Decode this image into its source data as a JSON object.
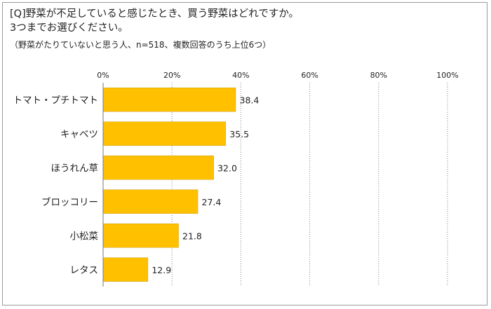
{
  "title_lines": [
    "[Q]野菜が不足していると感じたとき、買う野菜はどれですか。",
    "3つまでお選びください。"
  ],
  "subtitle": "（野菜がたりていないと思う人、n=518、複数回答のうち上位6つ）",
  "colors": {
    "bar": "#FFC000",
    "bar_edge": "#C9A227",
    "grid": "#888888",
    "axis": "#777777"
  },
  "chart_data": {
    "type": "bar",
    "orientation": "horizontal",
    "categories": [
      "トマト・プチトマト",
      "キャベツ",
      "ほうれん草",
      "ブロッコリー",
      "小松菜",
      "レタス"
    ],
    "values": [
      38.4,
      35.5,
      32.0,
      27.4,
      21.8,
      12.9
    ],
    "value_labels": [
      "38.4",
      "35.5",
      "32.0",
      "27.4",
      "21.8",
      "12.9"
    ],
    "xlim": [
      0,
      100
    ],
    "x_ticks": [
      "0%",
      "20%",
      "40%",
      "60%",
      "80%",
      "100%"
    ],
    "grid": true,
    "title": "[Q]野菜が不足していると感じたとき、買う野菜はどれですか。3つまでお選びください。",
    "xlabel": "",
    "ylabel": ""
  }
}
